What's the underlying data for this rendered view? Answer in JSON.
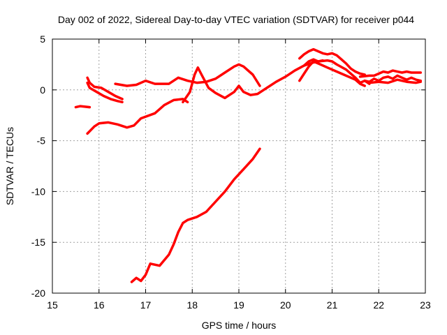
{
  "chart_data": {
    "type": "scatter",
    "title": "Day 002 of 2022, Sidereal Day-to-day VTEC variation (SDTVAR) for receiver p044",
    "xlabel": "GPS time / hours",
    "ylabel": "SDTVAR / TECUs",
    "xlim": [
      15,
      23
    ],
    "ylim": [
      -20,
      5
    ],
    "x_ticks": [
      "15",
      "16",
      "17",
      "18",
      "19",
      "20",
      "21",
      "22",
      "23"
    ],
    "y_ticks": [
      "5",
      "0",
      "-5",
      "-10",
      "-15",
      "-20"
    ],
    "grid": true,
    "marker": "plus",
    "color": "#ff0000",
    "series": [
      {
        "name": "s1",
        "x": [
          15.5,
          15.6,
          15.8
        ],
        "y": [
          -1.7,
          -1.6,
          -1.7
        ]
      },
      {
        "name": "s2",
        "x": [
          15.75,
          15.8,
          15.9,
          16.05,
          16.2,
          16.35,
          16.5
        ],
        "y": [
          1.2,
          0.7,
          0.3,
          0.2,
          -0.2,
          -0.6,
          -0.9
        ]
      },
      {
        "name": "s3",
        "x": [
          15.75,
          15.8,
          15.95,
          16.1,
          16.25,
          16.4,
          16.5
        ],
        "y": [
          0.7,
          0.2,
          -0.2,
          -0.6,
          -0.9,
          -1.1,
          -1.2
        ]
      },
      {
        "name": "s4",
        "x": [
          15.75,
          15.9,
          16.0,
          16.2,
          16.4,
          16.6,
          16.75,
          16.9,
          17.2,
          17.4,
          17.6,
          17.8,
          17.9
        ],
        "y": [
          -4.3,
          -3.6,
          -3.3,
          -3.2,
          -3.4,
          -3.7,
          -3.5,
          -2.8,
          -2.3,
          -1.5,
          -1.0,
          -0.9,
          -1.2
        ]
      },
      {
        "name": "s5",
        "x": [
          16.35,
          16.6,
          16.8,
          17.0,
          17.2,
          17.5,
          17.7,
          17.9,
          18.1,
          18.3,
          18.5,
          18.7,
          18.9,
          19.0,
          19.1,
          19.3,
          19.45
        ],
        "y": [
          0.6,
          0.4,
          0.5,
          0.9,
          0.6,
          0.6,
          1.2,
          0.9,
          0.7,
          0.8,
          1.1,
          1.7,
          2.3,
          2.5,
          2.3,
          1.5,
          0.4
        ]
      },
      {
        "name": "s6",
        "x": [
          17.8,
          17.95,
          18.05,
          18.12,
          18.2,
          18.35,
          18.5,
          18.7,
          18.9,
          19.0,
          19.1,
          19.25,
          19.4,
          19.6,
          19.8,
          20.0,
          20.2,
          20.4,
          20.6,
          20.8
        ],
        "y": [
          -1.2,
          -0.2,
          1.5,
          2.2,
          1.5,
          0.2,
          -0.3,
          -0.8,
          -0.2,
          0.4,
          -0.2,
          -0.5,
          -0.4,
          0.2,
          0.8,
          1.3,
          1.9,
          2.4,
          2.7,
          2.9
        ]
      },
      {
        "name": "s7",
        "x": [
          16.7,
          16.8,
          16.9,
          17.0,
          17.1,
          17.3,
          17.5,
          17.6,
          17.7,
          17.8,
          17.9,
          18.1,
          18.3,
          18.5,
          18.7,
          18.9,
          19.1,
          19.3,
          19.45
        ],
        "y": [
          -18.9,
          -18.5,
          -18.8,
          -18.2,
          -17.1,
          -17.3,
          -16.2,
          -15.2,
          -14.0,
          -13.1,
          -12.8,
          -12.5,
          -12.0,
          -11.0,
          -10.0,
          -8.8,
          -7.8,
          -6.8,
          -5.8
        ]
      },
      {
        "name": "s8",
        "x": [
          20.3,
          20.4,
          20.5,
          20.6,
          20.7,
          20.8,
          20.9,
          21.0,
          21.1,
          21.2,
          21.3,
          21.4,
          21.5,
          21.6,
          21.7
        ],
        "y": [
          3.1,
          3.5,
          3.8,
          4.0,
          3.8,
          3.6,
          3.5,
          3.6,
          3.4,
          3.0,
          2.6,
          2.1,
          1.8,
          1.6,
          1.5
        ]
      },
      {
        "name": "s9",
        "x": [
          20.4,
          20.5,
          20.6,
          20.7,
          20.9,
          21.0,
          21.1,
          21.3,
          21.5,
          21.6,
          21.7,
          21.8
        ],
        "y": [
          2.4,
          2.8,
          3.0,
          2.8,
          2.9,
          2.8,
          2.5,
          2.0,
          1.2,
          0.7,
          0.9,
          0.6
        ]
      },
      {
        "name": "s10",
        "x": [
          20.3,
          20.4,
          20.5,
          20.6,
          20.7,
          20.9,
          21.1,
          21.3,
          21.5,
          21.6,
          21.7
        ],
        "y": [
          0.9,
          1.6,
          2.3,
          2.8,
          2.6,
          2.2,
          1.8,
          1.4,
          1.0,
          0.6,
          0.4
        ]
      },
      {
        "name": "s11",
        "x": [
          21.6,
          21.8,
          21.9,
          22.0,
          22.1,
          22.2,
          22.3,
          22.4,
          22.5,
          22.6,
          22.7,
          22.8,
          22.9
        ],
        "y": [
          1.3,
          1.4,
          1.4,
          1.6,
          1.8,
          1.7,
          1.9,
          1.8,
          1.7,
          1.8,
          1.7,
          1.7,
          1.7
        ]
      },
      {
        "name": "s12",
        "x": [
          21.7,
          21.8,
          21.9,
          22.0,
          22.1,
          22.2,
          22.3,
          22.4,
          22.5,
          22.6,
          22.7,
          22.8,
          22.9
        ],
        "y": [
          0.9,
          0.8,
          1.1,
          0.9,
          1.2,
          1.3,
          1.1,
          1.4,
          1.2,
          1.0,
          1.2,
          1.0,
          0.9
        ]
      },
      {
        "name": "s13",
        "x": [
          21.8,
          22.0,
          22.2,
          22.4,
          22.6,
          22.8,
          22.9
        ],
        "y": [
          0.7,
          0.8,
          0.7,
          1.0,
          0.8,
          0.7,
          0.8
        ]
      }
    ]
  }
}
